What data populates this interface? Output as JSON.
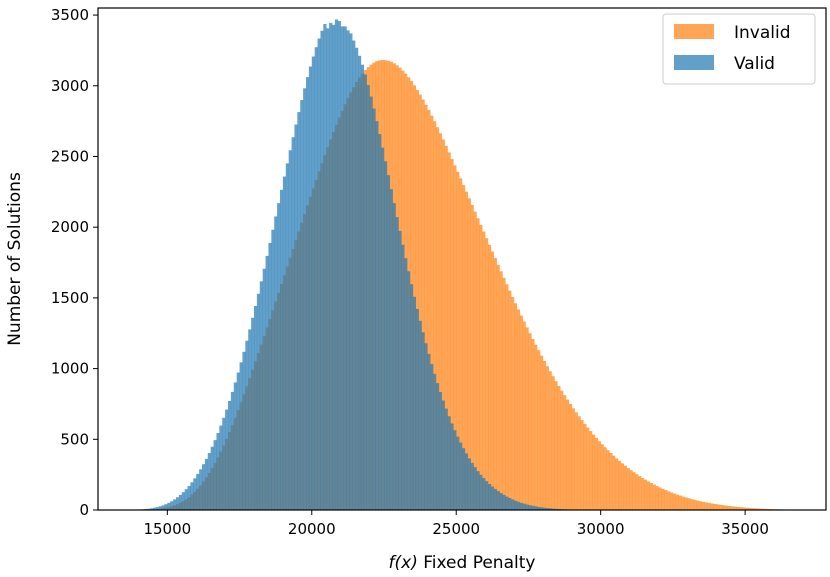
{
  "chart_data": {
    "type": "histogram",
    "xlabel_italic": "f(x)",
    "xlabel_rest": " Fixed Penalty",
    "ylabel": "Number of Solutions",
    "xlim": [
      12600,
      37800
    ],
    "ylim": [
      0,
      3550
    ],
    "xticks": [
      15000,
      20000,
      25000,
      30000,
      35000
    ],
    "yticks": [
      0,
      500,
      1000,
      1500,
      2000,
      2500,
      3000,
      3500
    ],
    "xtick_labels": [
      "15000",
      "20000",
      "25000",
      "30000",
      "35000"
    ],
    "ytick_labels": [
      "0",
      "500",
      "1000",
      "1500",
      "2000",
      "2500",
      "3000",
      "3500"
    ],
    "bin_width": 100,
    "legend_position": "top-right",
    "series": [
      {
        "name": "Invalid",
        "color": "#ff7f0e",
        "alpha": 0.7,
        "x_start": 14500,
        "values": [
          5,
          7,
          9,
          12,
          16,
          20,
          26,
          33,
          41,
          51,
          62,
          76,
          91,
          109,
          128,
          150,
          174,
          201,
          230,
          262,
          296,
          333,
          372,
          413,
          457,
          503,
          551,
          601,
          653,
          707,
          762,
          818,
          875,
          933,
          992,
          1051,
          1110,
          1170,
          1230,
          1291,
          1352,
          1413,
          1474,
          1536,
          1598,
          1660,
          1722,
          1784,
          1846,
          1908,
          1970,
          2032,
          2093,
          2154,
          2215,
          2275,
          2335,
          2394,
          2452,
          2509,
          2565,
          2620,
          2673,
          2725,
          2775,
          2823,
          2869,
          2912,
          2953,
          2991,
          3026,
          3058,
          3086,
          3111,
          3132,
          3150,
          3164,
          3174,
          3180,
          3182,
          3181,
          3177,
          3170,
          3159,
          3145,
          3128,
          3108,
          3085,
          3060,
          3033,
          3003,
          2971,
          2938,
          2903,
          2866,
          2828,
          2789,
          2749,
          2707,
          2664,
          2620,
          2575,
          2529,
          2483,
          2437,
          2391,
          2345,
          2298,
          2251,
          2204,
          2157,
          2110,
          2063,
          2016,
          1969,
          1922,
          1875,
          1828,
          1781,
          1734,
          1688,
          1642,
          1596,
          1551,
          1506,
          1462,
          1418,
          1375,
          1333,
          1291,
          1250,
          1209,
          1169,
          1130,
          1092,
          1054,
          1017,
          981,
          946,
          911,
          877,
          844,
          812,
          781,
          750,
          720,
          691,
          663,
          636,
          609,
          583,
          558,
          534,
          510,
          487,
          465,
          444,
          423,
          403,
          384,
          365,
          347,
          330,
          313,
          297,
          282,
          267,
          253,
          239,
          226,
          214,
          202,
          191,
          180,
          169,
          159,
          150,
          141,
          132,
          124,
          116,
          109,
          102,
          95,
          89,
          83,
          77,
          72,
          67,
          62,
          58,
          54,
          50,
          46,
          43,
          40,
          37,
          34,
          31,
          28,
          26,
          24,
          22,
          20,
          18,
          16,
          15,
          13,
          12,
          11,
          10,
          9,
          8,
          7,
          6,
          5,
          5,
          4,
          4,
          3,
          3,
          2,
          2,
          2,
          1,
          1
        ]
      },
      {
        "name": "Valid",
        "color": "#1f77b4",
        "alpha": 0.7,
        "x_start": 13500,
        "values": [
          1,
          1,
          2,
          2,
          3,
          4,
          5,
          7,
          9,
          12,
          16,
          20,
          26,
          33,
          41,
          51,
          62,
          75,
          90,
          107,
          126,
          147,
          170,
          196,
          224,
          255,
          288,
          324,
          362,
          403,
          447,
          494,
          544,
          597,
          652,
          710,
          771,
          835,
          902,
          972,
          1044,
          1119,
          1197,
          1277,
          1359,
          1443,
          1529,
          1617,
          1706,
          1797,
          1889,
          1982,
          2076,
          2170,
          2264,
          2358,
          2451,
          2544,
          2636,
          2726,
          2814,
          2899,
          2982,
          3061,
          3136,
          3207,
          3273,
          3334,
          3389,
          3437,
          3406,
          3445,
          3431,
          3469,
          3458,
          3420,
          3420,
          3392,
          3370,
          3320,
          3269,
          3212,
          3149,
          3080,
          3005,
          2924,
          2839,
          2750,
          2658,
          2563,
          2466,
          2368,
          2269,
          2170,
          2071,
          1973,
          1876,
          1781,
          1688,
          1597,
          1508,
          1422,
          1338,
          1257,
          1179,
          1104,
          1032,
          963,
          897,
          834,
          774,
          717,
          663,
          612,
          564,
          519,
          477,
          437,
          400,
          365,
          333,
          303,
          275,
          249,
          226,
          204,
          184,
          166,
          149,
          134,
          120,
          107,
          95,
          85,
          75,
          66,
          58,
          51,
          45,
          39,
          34,
          30,
          26,
          22,
          19,
          16,
          14,
          12,
          10,
          8,
          7,
          6,
          5,
          4,
          3,
          3,
          2,
          2,
          1,
          1,
          1,
          1
        ]
      }
    ]
  }
}
